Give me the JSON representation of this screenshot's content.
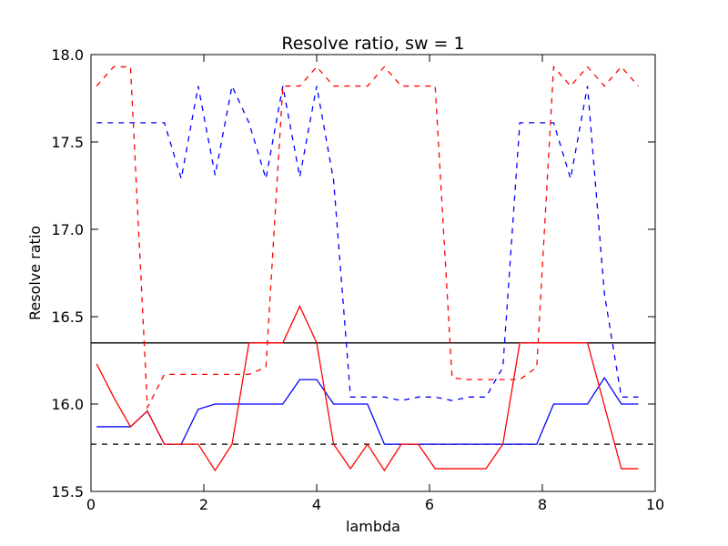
{
  "chart_data": {
    "type": "line",
    "title": "Resolve ratio, sw = 1",
    "xlabel": "lambda",
    "ylabel": "Resolve ratio",
    "xlim": [
      0,
      10
    ],
    "ylim": [
      15.5,
      18.0
    ],
    "xticks": [
      "0",
      "2",
      "4",
      "6",
      "8",
      "10"
    ],
    "yticks": [
      "15.5",
      "16.0",
      "16.5",
      "17.0",
      "17.5",
      "18.0"
    ],
    "grid": false,
    "series": [
      {
        "color": "#0000ff",
        "style": "dashed",
        "x": [
          0.1,
          0.4,
          0.7,
          1.0,
          1.3,
          1.6,
          1.9,
          2.2,
          2.5,
          2.8,
          3.1,
          3.4,
          3.7,
          4.0,
          4.3,
          4.6,
          4.9,
          5.2,
          5.5,
          5.8,
          6.1,
          6.4,
          6.7,
          7.0,
          7.3,
          7.6,
          7.9,
          8.2,
          8.5,
          8.8,
          9.1,
          9.4,
          9.7
        ],
        "y": [
          17.61,
          17.61,
          17.61,
          17.61,
          17.61,
          17.29,
          17.82,
          17.31,
          17.82,
          17.61,
          17.29,
          17.82,
          17.3,
          17.82,
          17.28,
          16.04,
          16.04,
          16.04,
          16.02,
          16.04,
          16.04,
          16.02,
          16.04,
          16.04,
          16.21,
          17.61,
          17.61,
          17.61,
          17.29,
          17.82,
          16.63,
          16.04,
          16.04
        ]
      },
      {
        "color": "#ff0000",
        "style": "dashed",
        "x": [
          0.1,
          0.4,
          0.7,
          1.0,
          1.3,
          1.6,
          1.9,
          2.2,
          2.5,
          2.8,
          3.1,
          3.4,
          3.7,
          4.0,
          4.3,
          4.6,
          4.9,
          5.2,
          5.5,
          5.8,
          6.1,
          6.4,
          6.7,
          7.0,
          7.3,
          7.6,
          7.9,
          8.2,
          8.5,
          8.8,
          9.1,
          9.4,
          9.7
        ],
        "y": [
          17.82,
          17.93,
          17.93,
          15.98,
          16.17,
          16.17,
          16.17,
          16.17,
          16.17,
          16.17,
          16.21,
          17.82,
          17.82,
          17.93,
          17.82,
          17.82,
          17.82,
          17.93,
          17.82,
          17.82,
          17.82,
          16.15,
          16.14,
          16.14,
          16.14,
          16.14,
          16.21,
          17.93,
          17.82,
          17.93,
          17.82,
          17.93,
          17.82
        ]
      },
      {
        "color": "#0000ff",
        "style": "solid",
        "x": [
          0.1,
          0.4,
          0.7,
          1.0,
          1.3,
          1.6,
          1.9,
          2.2,
          2.5,
          2.8,
          3.1,
          3.4,
          3.7,
          4.0,
          4.3,
          4.6,
          4.9,
          5.2,
          5.5,
          5.8,
          6.1,
          6.4,
          6.7,
          7.0,
          7.3,
          7.6,
          7.9,
          8.2,
          8.5,
          8.8,
          9.1,
          9.4,
          9.7
        ],
        "y": [
          15.87,
          15.87,
          15.87,
          15.96,
          15.77,
          15.77,
          15.97,
          16.0,
          16.0,
          16.0,
          16.0,
          16.0,
          16.14,
          16.14,
          16.0,
          16.0,
          16.0,
          15.77,
          15.77,
          15.77,
          15.77,
          15.77,
          15.77,
          15.77,
          15.77,
          15.77,
          15.77,
          16.0,
          16.0,
          16.0,
          16.15,
          16.0,
          16.0
        ]
      },
      {
        "color": "#ff0000",
        "style": "solid",
        "x": [
          0.1,
          0.4,
          0.7,
          1.0,
          1.3,
          1.6,
          1.9,
          2.2,
          2.5,
          2.8,
          3.1,
          3.4,
          3.7,
          4.0,
          4.3,
          4.6,
          4.9,
          5.2,
          5.5,
          5.8,
          6.1,
          6.4,
          6.7,
          7.0,
          7.3,
          7.6,
          7.9,
          8.2,
          8.5,
          8.8,
          9.1,
          9.4,
          9.7
        ],
        "y": [
          16.23,
          16.04,
          15.87,
          15.96,
          15.77,
          15.77,
          15.77,
          15.62,
          15.77,
          16.35,
          16.35,
          16.35,
          16.56,
          16.35,
          15.77,
          15.63,
          15.77,
          15.62,
          15.77,
          15.77,
          15.63,
          15.63,
          15.63,
          15.63,
          15.77,
          16.35,
          16.35,
          16.35,
          16.35,
          16.35,
          15.99,
          15.63,
          15.63
        ]
      }
    ],
    "hlines": [
      {
        "y": 16.35,
        "color": "#000000",
        "style": "solid"
      },
      {
        "y": 15.77,
        "color": "#000000",
        "style": "dashed"
      }
    ]
  }
}
